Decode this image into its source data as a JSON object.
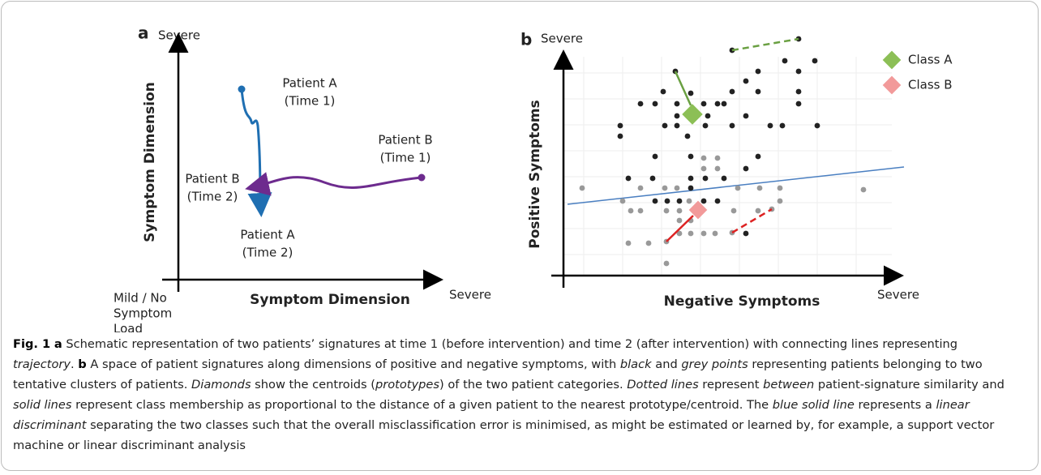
{
  "panel_a": {
    "label": "a",
    "y_axis_top": "Severe",
    "y_axis_title": "Symptom Dimension",
    "x_axis_title": "Symptom Dimension",
    "x_axis_right": "Severe",
    "origin_label": [
      "Mild / No",
      "Symptom",
      "Load"
    ],
    "annotations": [
      {
        "lines": [
          "Patient A",
          "(Time 1)"
        ]
      },
      {
        "lines": [
          "Patient B",
          "(Time 1)"
        ]
      },
      {
        "lines": [
          "Patient B",
          "(Time 2)"
        ]
      },
      {
        "lines": [
          "Patient A",
          "(Time 2)"
        ]
      }
    ]
  },
  "panel_b": {
    "label": "b",
    "y_axis_top": "Severe",
    "y_axis_title": "Positive Symptoms",
    "x_axis_title": "Negative Symptoms",
    "x_axis_right": "Severe",
    "legend": [
      {
        "name": "Class A",
        "color": "#8cbf56"
      },
      {
        "name": "Class B",
        "color": "#f29a9a"
      }
    ]
  },
  "caption": [
    {
      "text": "Fig. 1",
      "style": "bold"
    },
    {
      "text": " "
    },
    {
      "text": "a",
      "style": "bold"
    },
    {
      "text": " Schematic representation of two patients’ signatures at time 1 (before intervention) and time 2 (after intervention) with connecting lines representing "
    },
    {
      "text": "trajectory",
      "style": "italic"
    },
    {
      "text": ". "
    },
    {
      "text": "b",
      "style": "bold"
    },
    {
      "text": " A space of patient signatures along dimensions of positive and negative symptoms, with "
    },
    {
      "text": "black",
      "style": "italic"
    },
    {
      "text": " and "
    },
    {
      "text": "grey points",
      "style": "italic"
    },
    {
      "text": " representing patients belonging to two tentative clusters of patients. "
    },
    {
      "text": "Diamonds",
      "style": "italic"
    },
    {
      "text": " show the centroids ("
    },
    {
      "text": "prototypes",
      "style": "italic"
    },
    {
      "text": ") of the two patient categories. "
    },
    {
      "text": "Dotted lines",
      "style": "italic"
    },
    {
      "text": " represent "
    },
    {
      "text": "between",
      "style": "italic"
    },
    {
      "text": " patient-signature similarity and "
    },
    {
      "text": "solid lines",
      "style": "italic"
    },
    {
      "text": " represent class membership as proportional to the distance of a given patient to the nearest prototype/centroid. The "
    },
    {
      "text": "blue solid line",
      "style": "italic"
    },
    {
      "text": " represents a "
    },
    {
      "text": "linear discriminant",
      "style": "italic"
    },
    {
      "text": " separating the two classes such that the overall misclassification error is minimised, as might be estimated or learned by, for example, a support vector machine or linear discriminant analysis"
    }
  ]
}
